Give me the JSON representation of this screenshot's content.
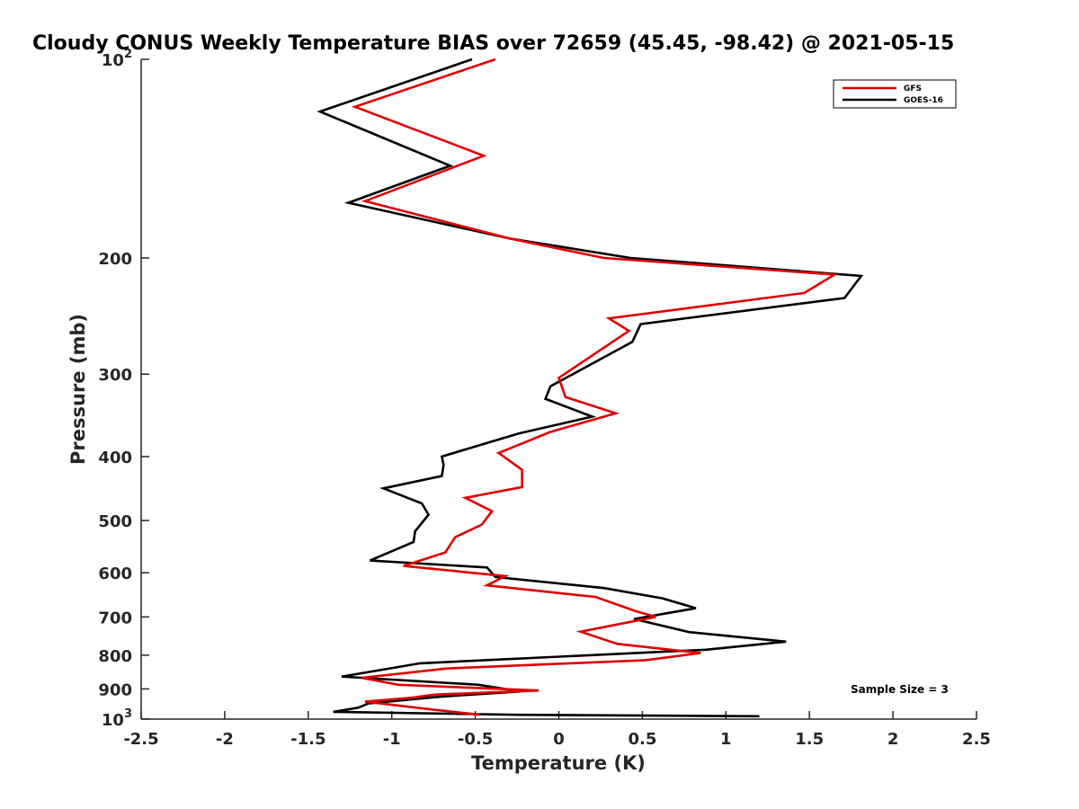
{
  "chart_data": {
    "type": "line",
    "title": "Cloudy CONUS Weekly Temperature BIAS over 72659 (45.45, -98.42) @ 2021-05-15",
    "xlabel": "Temperature (K)",
    "ylabel": "Pressure (mb)",
    "xlim": [
      -2.5,
      2.5
    ],
    "ylim": [
      100,
      1000
    ],
    "y_scale": "log",
    "y_reversed": true,
    "grid": false,
    "legend_position": "top-right",
    "x_ticks": [
      {
        "value": -2.5,
        "label": "-2.5"
      },
      {
        "value": -2,
        "label": "-2"
      },
      {
        "value": -1.5,
        "label": "-1.5"
      },
      {
        "value": -1,
        "label": "-1"
      },
      {
        "value": -0.5,
        "label": "-0.5"
      },
      {
        "value": 0,
        "label": "0"
      },
      {
        "value": 0.5,
        "label": "0.5"
      },
      {
        "value": 1,
        "label": "1"
      },
      {
        "value": 1.5,
        "label": "1.5"
      },
      {
        "value": 2,
        "label": "2"
      },
      {
        "value": 2.5,
        "label": "2.5"
      }
    ],
    "y_ticks": [
      {
        "value": 100,
        "base": "10",
        "exp": "2"
      },
      {
        "value": 200,
        "label": "200"
      },
      {
        "value": 300,
        "label": "300"
      },
      {
        "value": 400,
        "label": "400"
      },
      {
        "value": 500,
        "label": "500"
      },
      {
        "value": 600,
        "label": "600"
      },
      {
        "value": 700,
        "label": "700"
      },
      {
        "value": 800,
        "label": "800"
      },
      {
        "value": 900,
        "label": "900"
      },
      {
        "value": 1000,
        "base": "10",
        "exp": "3"
      }
    ],
    "annotation": "Sample Size = 3",
    "series": [
      {
        "name": "GFS",
        "color": "#e00000",
        "points": [
          [
            -0.38,
            100
          ],
          [
            -1.22,
            118
          ],
          [
            -0.45,
            140
          ],
          [
            -1.16,
            164
          ],
          [
            -0.29,
            187
          ],
          [
            0.27,
            200
          ],
          [
            1.65,
            212
          ],
          [
            1.47,
            226
          ],
          [
            0.3,
            247
          ],
          [
            0.42,
            258
          ],
          [
            0.0,
            304
          ],
          [
            0.04,
            325
          ],
          [
            0.34,
            344
          ],
          [
            -0.05,
            367
          ],
          [
            -0.36,
            395
          ],
          [
            -0.22,
            419
          ],
          [
            -0.22,
            445
          ],
          [
            -0.56,
            462
          ],
          [
            -0.4,
            484
          ],
          [
            -0.46,
            507
          ],
          [
            -0.62,
            530
          ],
          [
            -0.68,
            559
          ],
          [
            -0.93,
            586
          ],
          [
            -0.32,
            607
          ],
          [
            -0.43,
            627
          ],
          [
            0.22,
            653
          ],
          [
            0.46,
            686
          ],
          [
            0.58,
            700
          ],
          [
            0.13,
            737
          ],
          [
            0.35,
            769
          ],
          [
            0.85,
            794
          ],
          [
            0.52,
            814
          ],
          [
            -0.67,
            838
          ],
          [
            -1.18,
            866
          ],
          [
            -0.96,
            887
          ],
          [
            -0.12,
            905
          ],
          [
            -0.74,
            918
          ],
          [
            -0.88,
            928
          ],
          [
            -1.16,
            941
          ],
          [
            -0.76,
            967
          ],
          [
            -0.47,
            985
          ]
        ]
      },
      {
        "name": "GOES-16",
        "color": "#000000",
        "points": [
          [
            -0.52,
            100
          ],
          [
            -1.43,
            120
          ],
          [
            -0.65,
            145
          ],
          [
            -1.26,
            165
          ],
          [
            -0.29,
            187
          ],
          [
            0.43,
            200
          ],
          [
            1.81,
            213
          ],
          [
            1.71,
            230
          ],
          [
            0.49,
            252
          ],
          [
            0.44,
            268
          ],
          [
            -0.05,
            313
          ],
          [
            -0.08,
            327
          ],
          [
            0.2,
            348
          ],
          [
            -0.24,
            369
          ],
          [
            -0.7,
            400
          ],
          [
            -0.69,
            412
          ],
          [
            -0.7,
            428
          ],
          [
            -1.05,
            447
          ],
          [
            -0.82,
            471
          ],
          [
            -0.78,
            490
          ],
          [
            -0.86,
            519
          ],
          [
            -0.87,
            539
          ],
          [
            -1.13,
            575
          ],
          [
            -0.43,
            589
          ],
          [
            -0.38,
            609
          ],
          [
            0.27,
            633
          ],
          [
            0.62,
            656
          ],
          [
            0.82,
            679
          ],
          [
            0.45,
            705
          ],
          [
            0.78,
            738
          ],
          [
            1.36,
            763
          ],
          [
            0.88,
            785
          ],
          [
            -0.83,
            823
          ],
          [
            -1.3,
            862
          ],
          [
            -0.48,
            887
          ],
          [
            -0.23,
            908
          ],
          [
            -0.71,
            925
          ],
          [
            -1.14,
            947
          ],
          [
            -1.2,
            961
          ],
          [
            -1.35,
            975
          ],
          [
            -0.25,
            985
          ],
          [
            1.2,
            990
          ]
        ]
      }
    ]
  }
}
